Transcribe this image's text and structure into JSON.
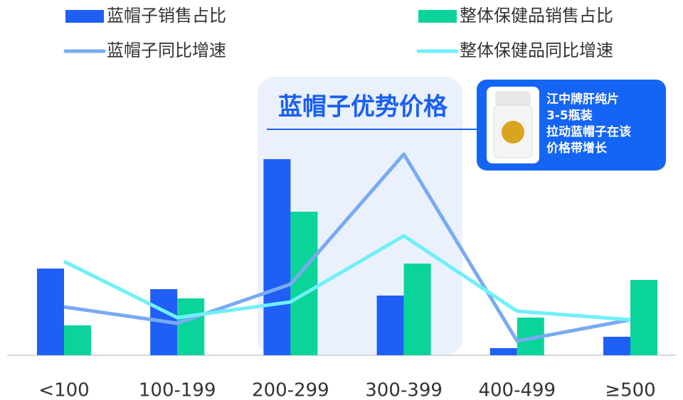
{
  "chart_data": {
    "type": "bar",
    "categories": [
      "<100",
      "100-199",
      "200-299",
      "300-399",
      "400-499",
      "≥500"
    ],
    "series": [
      {
        "name": "蓝帽子销售占比",
        "type": "bar",
        "color": "#1f5ff5",
        "values": [
          122,
          93,
          276,
          84,
          10,
          26
        ]
      },
      {
        "name": "整体保健品销售占比",
        "type": "bar",
        "color": "#0bd49a",
        "values": [
          42,
          80,
          202,
          129,
          53,
          106
        ]
      },
      {
        "name": "蓝帽子同比增速",
        "type": "line",
        "color": "#79aaf2",
        "values": [
          68,
          45,
          100,
          283,
          20,
          50
        ]
      },
      {
        "name": "整体保健品同比增速",
        "type": "line",
        "color": "#6ff0f9",
        "values": [
          132,
          53,
          75,
          168,
          62,
          50
        ]
      }
    ],
    "ylim": [
      0,
      300
    ],
    "highlight_title": "蓝帽子优势价格",
    "callout": [
      "江中牌肝纯片",
      "3-5瓶装",
      "拉动蓝帽子在该",
      "价格带增长"
    ]
  }
}
